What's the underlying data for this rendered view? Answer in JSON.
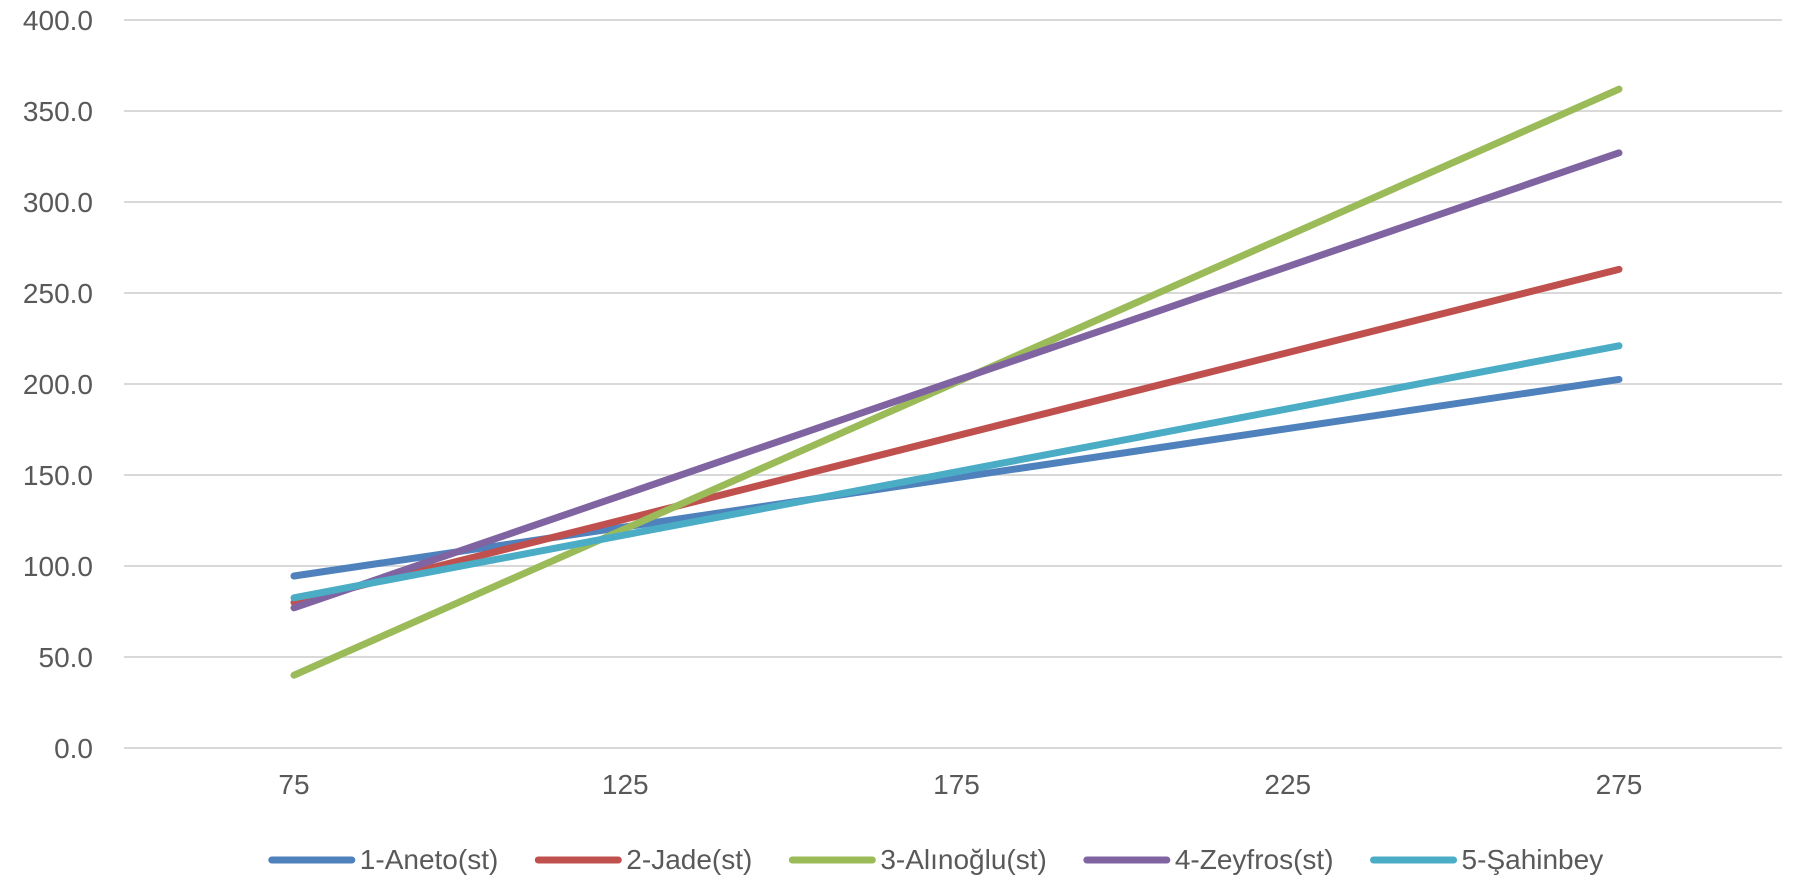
{
  "chart_data": {
    "type": "line",
    "title": "",
    "xlabel": "",
    "ylabel": "",
    "categories": [
      "75",
      "125",
      "175",
      "225",
      "275"
    ],
    "x": [
      75,
      275
    ],
    "ylim": [
      0,
      400
    ],
    "yticks": [
      0,
      50,
      100,
      150,
      200,
      250,
      300,
      350,
      400
    ],
    "ytick_labels": [
      "0.0",
      "50.0",
      "100.0",
      "150.0",
      "200.0",
      "250.0",
      "300.0",
      "350.0",
      "400.0"
    ],
    "grid": true,
    "legend_position": "bottom",
    "series": [
      {
        "name": "1-Aneto(st)",
        "color": "#4f81bd",
        "values": [
          94.5,
          202.5
        ]
      },
      {
        "name": "2-Jade(st)",
        "color": "#c0504d",
        "values": [
          80.0,
          263.0
        ]
      },
      {
        "name": "3-Alınoğlu(st)",
        "color": "#9bbb59",
        "values": [
          40.0,
          362.0
        ]
      },
      {
        "name": "4-Zeyfros(st)",
        "color": "#8064a2",
        "values": [
          77.0,
          327.0
        ]
      },
      {
        "name": "5-Şahinbey",
        "color": "#4bacc6",
        "values": [
          82.5,
          221.0
        ]
      }
    ]
  }
}
